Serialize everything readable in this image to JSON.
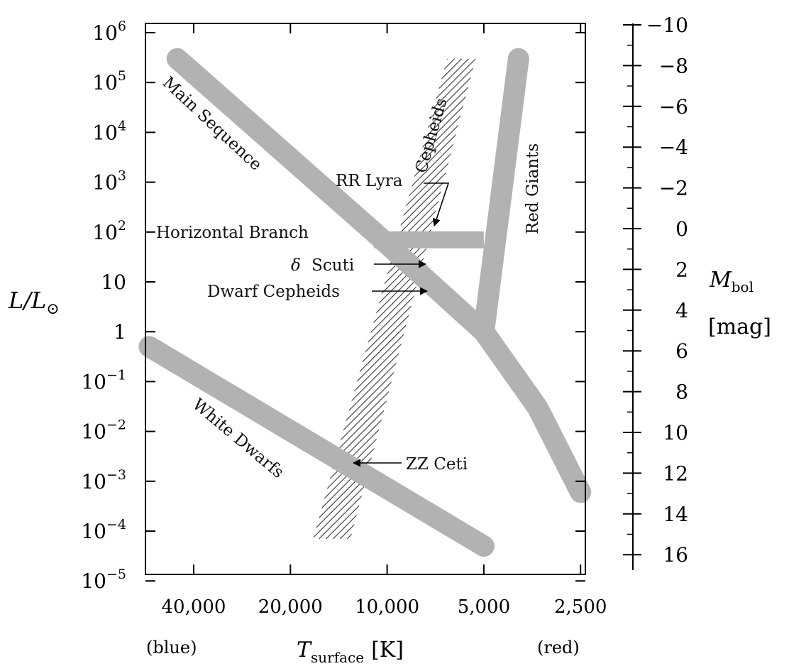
{
  "chart_data": {
    "type": "scatter",
    "title": "",
    "x_axis": {
      "label_main": "T",
      "label_sub": "surface",
      "label_unit": "[K]",
      "scale": "log-reversed",
      "ticks": [
        {
          "value": 40000,
          "label": "40,000"
        },
        {
          "value": 20000,
          "label": "20,000"
        },
        {
          "value": 10000,
          "label": "10,000"
        },
        {
          "value": 5000,
          "label": "5,000"
        },
        {
          "value": 2500,
          "label": "2,500"
        }
      ],
      "end_label_left": "(blue)",
      "end_label_right": "(red)"
    },
    "y_axis_left": {
      "label_main": "L/L",
      "label_sub": "⊙",
      "scale": "log",
      "ylim": [
        1e-05,
        1000000.0
      ],
      "ticks": [
        {
          "exp": 6,
          "label_base": "10",
          "label_exp": "6"
        },
        {
          "exp": 5,
          "label_base": "10",
          "label_exp": "5"
        },
        {
          "exp": 4,
          "label_base": "10",
          "label_exp": "4"
        },
        {
          "exp": 3,
          "label_base": "10",
          "label_exp": "3"
        },
        {
          "exp": 2,
          "label_base": "10",
          "label_exp": "2"
        },
        {
          "exp": 1,
          "label_base": "10",
          "label_exp": ""
        },
        {
          "exp": 0,
          "label_base": "1",
          "label_exp": ""
        },
        {
          "exp": -1,
          "label_base": "10",
          "label_exp": "−1"
        },
        {
          "exp": -2,
          "label_base": "10",
          "label_exp": "−2"
        },
        {
          "exp": -3,
          "label_base": "10",
          "label_exp": "−3"
        },
        {
          "exp": -4,
          "label_base": "10",
          "label_exp": "−4"
        },
        {
          "exp": -5,
          "label_base": "10",
          "label_exp": "−5"
        }
      ]
    },
    "y_axis_right": {
      "label_main": "M",
      "label_sub": "bol",
      "label_unit": "[mag]",
      "ticks": [
        {
          "value": -10,
          "label": "−10"
        },
        {
          "value": -8,
          "label": "−8"
        },
        {
          "value": -6,
          "label": "−6"
        },
        {
          "value": -4,
          "label": "−4"
        },
        {
          "value": -2,
          "label": "−2"
        },
        {
          "value": 0,
          "label": "0"
        },
        {
          "value": 2,
          "label": "2"
        },
        {
          "value": 4,
          "label": "4"
        },
        {
          "value": 6,
          "label": "6"
        },
        {
          "value": 8,
          "label": "8"
        },
        {
          "value": 10,
          "label": "10"
        },
        {
          "value": 12,
          "label": "12"
        },
        {
          "value": 14,
          "label": "14"
        },
        {
          "value": 16,
          "label": "16"
        }
      ]
    },
    "regions": [
      {
        "name": "Main Sequence",
        "path": [
          [
            45000,
            300000
          ],
          [
            11000,
            100
          ],
          [
            5000,
            1
          ],
          [
            3400,
            0.03
          ],
          [
            2500,
            0.0006
          ]
        ]
      },
      {
        "name": "Red Giants",
        "path": [
          [
            3900,
            300000
          ],
          [
            5000,
            1
          ]
        ]
      },
      {
        "name": "Horizontal Branch",
        "path": [
          [
            11000,
            70
          ],
          [
            5000,
            70
          ]
        ]
      },
      {
        "name": "White Dwarfs",
        "path": [
          [
            55000,
            0.5
          ],
          [
            5000,
            5e-05
          ]
        ]
      }
    ],
    "instability_strip": {
      "name": "Cepheids",
      "bottom": [
        [
          17000,
          7e-05
        ],
        [
          13000,
          7e-05
        ]
      ],
      "top": [
        [
          6500,
          300000
        ],
        [
          5300,
          300000
        ]
      ]
    },
    "annotations": [
      {
        "name": "RR Lyra",
        "x": 7200,
        "y": 100
      },
      {
        "name": "δ Scuti",
        "x": 8000,
        "y": 10
      },
      {
        "name": "Dwarf Cepheids",
        "x": 8000,
        "y": 5
      },
      {
        "name": "ZZ Ceti",
        "x": 13000,
        "y": 0.002
      }
    ],
    "labels": {
      "main_sequence": "Main Sequence",
      "red_giants": "Red Giants",
      "horizontal_branch": "Horizontal Branch",
      "white_dwarfs": "White Dwarfs",
      "cepheids": "Cepheids",
      "rr_lyra": "RR Lyra",
      "delta_scuti_symbol": "δ",
      "delta_scuti_word": "Scuti",
      "dwarf_cepheids": "Dwarf Cepheids",
      "zz_ceti": "ZZ Ceti"
    },
    "grid": false,
    "colors": {
      "band": "#b2b2b2",
      "hatch": "#333333",
      "axis": "#000000"
    }
  }
}
